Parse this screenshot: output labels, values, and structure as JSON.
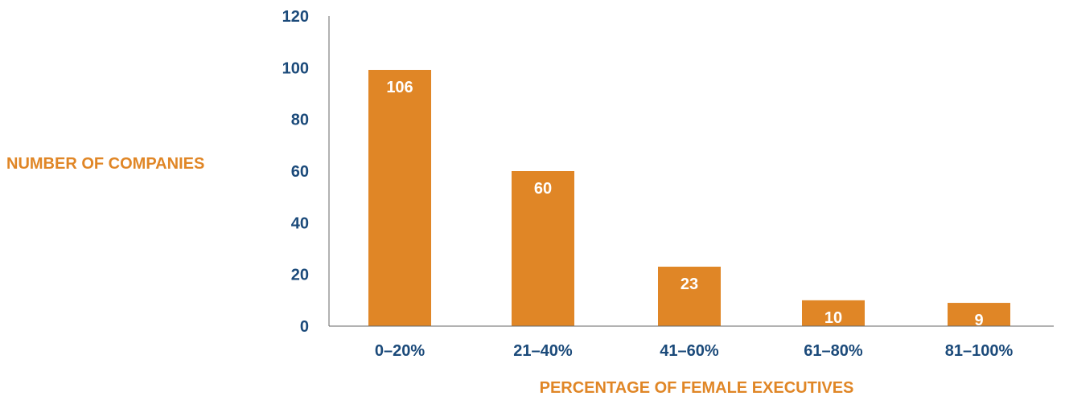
{
  "chart_data": {
    "type": "bar",
    "categories": [
      "0–20%",
      "21–40%",
      "41–60%",
      "61–80%",
      "81–100%"
    ],
    "values": [
      106,
      60,
      23,
      10,
      9
    ],
    "data_labels": [
      "106",
      "60",
      "23",
      "10",
      "9"
    ],
    "title": "",
    "xlabel": "PERCENTAGE OF FEMALE EXECUTIVES",
    "ylabel": "NUMBER OF COMPANIES",
    "ylim": [
      0,
      120
    ],
    "yticks": [
      0,
      20,
      40,
      60,
      80,
      100,
      120
    ],
    "grid": false,
    "legend": "none"
  },
  "colors": {
    "bar": "#E08626",
    "axis_title": "#E08626",
    "tick_label": "#1B4A7A",
    "bar_label": "#FFFFFF",
    "axis_line": "#666666"
  }
}
